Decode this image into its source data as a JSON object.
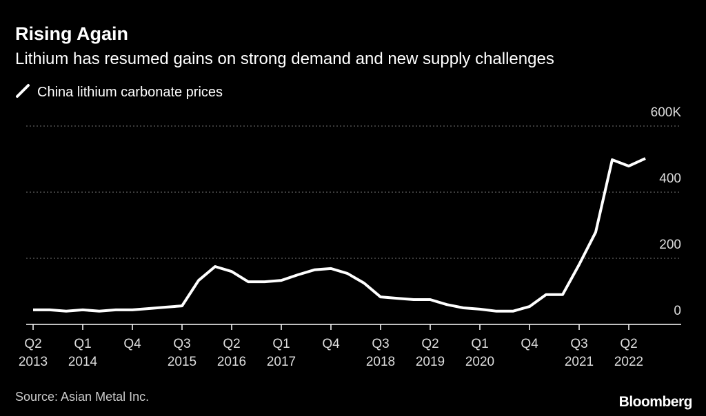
{
  "chart_data": {
    "type": "line",
    "title": "Rising Again",
    "subtitle": "Lithium has resumed gains on strong demand and new supply challenges",
    "source": "Source: Asian Metal Inc.",
    "brand": "Bloomberg",
    "categories": [
      "Q2 2013",
      null,
      null,
      "Q1 2014",
      null,
      null,
      "Q4",
      null,
      null,
      "Q3 2015",
      null,
      null,
      "Q2 2016",
      null,
      null,
      "Q1 2017",
      null,
      null,
      "Q4",
      null,
      null,
      "Q3 2018",
      null,
      null,
      "Q2 2019",
      null,
      null,
      "Q1 2020",
      null,
      null,
      "Q4",
      null,
      null,
      "Q3 2021",
      null,
      null,
      "Q2 2022",
      null
    ],
    "series": [
      {
        "name": "China lithium carbonate prices",
        "color": "#ffffff",
        "values": [
          44,
          44,
          40,
          44,
          40,
          44,
          44,
          48,
          52,
          56,
          133,
          175,
          160,
          129,
          129,
          133,
          150,
          165,
          169,
          154,
          125,
          83,
          79,
          75,
          75,
          60,
          50,
          46,
          40,
          40,
          54,
          90,
          90,
          181,
          279,
          498,
          479,
          502
        ]
      }
    ],
    "ylim": [
      0,
      600
    ],
    "yticks": [
      0,
      200,
      400,
      {
        "value": 600,
        "label": "600K"
      }
    ],
    "grid": true
  }
}
